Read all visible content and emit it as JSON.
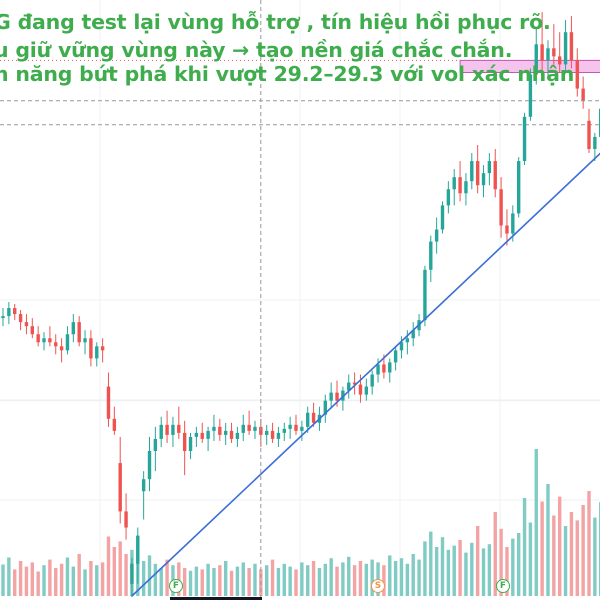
{
  "colors": {
    "up": "#26a69a",
    "down": "#ef5350",
    "volume_up": "#80cbc4",
    "volume_down": "#f3a3a3",
    "trendline": "#3b6fd6",
    "zone_fill": "#f4c4ec",
    "zone_border": "#c458b8",
    "annotation_text": "#3fad4d",
    "crosshair": "#9598a1",
    "grid": "#eef0f3",
    "badge": "#3fad4d",
    "badge_s": "#f0944b"
  },
  "annotations": [
    "G đang test lại vùng hỗ trợ , tín hiệu hồi phục rõ.",
    "u giữ vững vùng này → tạo nền giá chắc chắn.",
    "n năng bứt phá khi vượt 29.2–29.3 với vol xác nhận"
  ],
  "events": [
    {
      "letter": "F",
      "icon": "financials-event-icon"
    },
    {
      "letter": "S",
      "icon": "split-event-icon"
    },
    {
      "letter": "F",
      "icon": "financials-event-icon"
    }
  ],
  "chart_data": {
    "type": "candlestick",
    "price_axis": {
      "top": 29.52,
      "bottom": 26.54
    },
    "candles": [
      [
        27.94,
        27.99,
        27.9,
        27.95
      ],
      [
        27.95,
        28.02,
        27.91,
        27.99
      ],
      [
        27.99,
        28.01,
        27.93,
        27.96
      ],
      [
        27.96,
        27.98,
        27.88,
        27.92
      ],
      [
        27.92,
        27.96,
        27.86,
        27.9
      ],
      [
        27.9,
        27.94,
        27.84,
        27.86
      ],
      [
        27.86,
        27.9,
        27.8,
        27.82
      ],
      [
        27.82,
        27.87,
        27.78,
        27.84
      ],
      [
        27.84,
        27.9,
        27.8,
        27.82
      ],
      [
        27.82,
        27.86,
        27.76,
        27.8
      ],
      [
        27.8,
        27.84,
        27.72,
        27.78
      ],
      [
        27.78,
        27.9,
        27.76,
        27.86
      ],
      [
        27.86,
        27.96,
        27.82,
        27.92
      ],
      [
        27.92,
        27.95,
        27.8,
        27.82
      ],
      [
        27.82,
        27.88,
        27.76,
        27.84
      ],
      [
        27.84,
        27.88,
        27.7,
        27.74
      ],
      [
        27.74,
        27.82,
        27.7,
        27.8
      ],
      [
        27.8,
        27.84,
        27.72,
        27.78
      ],
      [
        27.6,
        27.67,
        27.4,
        27.44
      ],
      [
        27.44,
        27.5,
        27.36,
        27.38
      ],
      [
        27.22,
        27.35,
        26.92,
        26.98
      ],
      [
        26.98,
        27.07,
        26.84,
        26.9
      ],
      [
        26.62,
        26.75,
        26.56,
        26.72
      ],
      [
        26.72,
        26.9,
        26.62,
        26.86
      ],
      [
        27.08,
        27.18,
        26.94,
        27.14
      ],
      [
        27.14,
        27.35,
        27.08,
        27.28
      ],
      [
        27.28,
        27.4,
        27.18,
        27.34
      ],
      [
        27.34,
        27.45,
        27.3,
        27.41
      ],
      [
        27.41,
        27.48,
        27.32,
        27.36
      ],
      [
        27.36,
        27.45,
        27.3,
        27.41
      ],
      [
        27.41,
        27.5,
        27.34,
        27.37
      ],
      [
        27.37,
        27.43,
        27.16,
        27.28
      ],
      [
        27.28,
        27.37,
        27.24,
        27.35
      ],
      [
        27.35,
        27.4,
        27.3,
        27.37
      ],
      [
        27.37,
        27.42,
        27.32,
        27.34
      ],
      [
        27.34,
        27.4,
        27.28,
        27.38
      ],
      [
        27.38,
        27.46,
        27.33,
        27.4
      ],
      [
        27.4,
        27.44,
        27.33,
        27.36
      ],
      [
        27.36,
        27.42,
        27.31,
        27.38
      ],
      [
        27.38,
        27.42,
        27.32,
        27.34
      ],
      [
        27.34,
        27.4,
        27.3,
        27.37
      ],
      [
        27.37,
        27.46,
        27.33,
        27.41
      ],
      [
        27.41,
        27.48,
        27.36,
        27.38
      ],
      [
        27.38,
        27.43,
        27.34,
        27.4
      ],
      [
        27.4,
        27.44,
        27.3,
        27.36
      ],
      [
        27.36,
        27.41,
        27.31,
        27.38
      ],
      [
        27.38,
        27.42,
        27.32,
        27.34
      ],
      [
        27.34,
        27.4,
        27.3,
        27.37
      ],
      [
        27.37,
        27.42,
        27.33,
        27.39
      ],
      [
        27.39,
        27.45,
        27.34,
        27.41
      ],
      [
        27.41,
        27.46,
        27.36,
        27.38
      ],
      [
        27.38,
        27.43,
        27.33,
        27.4
      ],
      [
        27.4,
        27.5,
        27.37,
        27.47
      ],
      [
        27.47,
        27.52,
        27.4,
        27.42
      ],
      [
        27.42,
        27.5,
        27.38,
        27.46
      ],
      [
        27.46,
        27.56,
        27.42,
        27.53
      ],
      [
        27.53,
        27.62,
        27.49,
        27.57
      ],
      [
        27.57,
        27.63,
        27.5,
        27.53
      ],
      [
        27.53,
        27.6,
        27.48,
        27.58
      ],
      [
        27.58,
        27.66,
        27.54,
        27.62
      ],
      [
        27.62,
        27.67,
        27.56,
        27.61
      ],
      [
        27.61,
        27.66,
        27.52,
        27.56
      ],
      [
        27.56,
        27.64,
        27.53,
        27.6
      ],
      [
        27.6,
        27.68,
        27.56,
        27.66
      ],
      [
        27.66,
        27.74,
        27.62,
        27.71
      ],
      [
        27.71,
        27.76,
        27.64,
        27.67
      ],
      [
        27.67,
        27.74,
        27.62,
        27.72
      ],
      [
        27.72,
        27.8,
        27.68,
        27.78
      ],
      [
        27.78,
        27.85,
        27.74,
        27.82
      ],
      [
        27.82,
        27.88,
        27.76,
        27.84
      ],
      [
        27.84,
        27.92,
        27.8,
        27.88
      ],
      [
        27.88,
        27.96,
        27.85,
        27.93
      ],
      [
        27.93,
        28.2,
        27.9,
        28.18
      ],
      [
        28.18,
        28.35,
        28.12,
        28.32
      ],
      [
        28.32,
        28.44,
        28.26,
        28.38
      ],
      [
        28.38,
        28.52,
        28.36,
        28.5
      ],
      [
        28.5,
        28.62,
        28.46,
        28.58
      ],
      [
        28.58,
        28.68,
        28.5,
        28.64
      ],
      [
        28.64,
        28.72,
        28.52,
        28.56
      ],
      [
        28.56,
        28.66,
        28.5,
        28.62
      ],
      [
        28.62,
        28.76,
        28.58,
        28.72
      ],
      [
        28.72,
        28.8,
        28.56,
        28.6
      ],
      [
        28.6,
        28.7,
        28.54,
        28.66
      ],
      [
        28.66,
        28.76,
        28.6,
        28.72
      ],
      [
        28.72,
        28.78,
        28.54,
        28.58
      ],
      [
        28.58,
        28.64,
        28.34,
        28.4
      ],
      [
        28.4,
        28.48,
        28.3,
        28.36
      ],
      [
        28.36,
        28.5,
        28.32,
        28.46
      ],
      [
        28.46,
        28.74,
        28.44,
        28.72
      ],
      [
        28.72,
        28.96,
        28.7,
        28.94
      ],
      [
        28.94,
        29.18,
        28.92,
        29.15
      ],
      [
        29.15,
        29.38,
        29.1,
        29.3
      ],
      [
        29.3,
        29.46,
        29.16,
        29.22
      ],
      [
        29.22,
        29.32,
        29.14,
        29.28
      ],
      [
        29.28,
        29.4,
        29.2,
        29.24
      ],
      [
        29.24,
        29.36,
        29.16,
        29.2
      ],
      [
        29.2,
        29.42,
        29.16,
        29.36
      ],
      [
        29.36,
        29.44,
        29.18,
        29.22
      ],
      [
        29.22,
        29.28,
        29.04,
        29.08
      ],
      [
        29.08,
        29.14,
        28.98,
        29.02
      ],
      [
        28.92,
        28.98,
        28.76,
        28.78
      ],
      [
        28.78,
        28.86,
        28.72,
        28.84
      ],
      [
        28.84,
        29.0,
        28.82,
        28.98
      ]
    ],
    "volume": [
      0.45,
      0.55,
      0.38,
      0.5,
      0.42,
      0.48,
      0.35,
      0.44,
      0.52,
      0.4,
      0.46,
      0.55,
      0.42,
      0.6,
      0.38,
      0.5,
      0.44,
      0.48,
      0.85,
      0.7,
      0.78,
      0.6,
      0.66,
      0.72,
      0.5,
      0.58,
      0.46,
      0.4,
      0.52,
      0.44,
      0.48,
      0.4,
      0.36,
      0.42,
      0.38,
      0.46,
      0.4,
      0.44,
      0.5,
      0.36,
      0.42,
      0.48,
      0.4,
      0.46,
      0.38,
      0.44,
      0.52,
      0.4,
      0.46,
      0.42,
      0.38,
      0.48,
      0.44,
      0.5,
      0.4,
      0.46,
      0.54,
      0.42,
      0.48,
      0.56,
      0.44,
      0.5,
      0.46,
      0.52,
      0.48,
      0.44,
      0.58,
      0.5,
      0.54,
      0.46,
      0.6,
      0.52,
      0.78,
      0.92,
      0.7,
      0.84,
      0.66,
      0.72,
      0.8,
      0.62,
      0.76,
      1.0,
      0.68,
      0.74,
      1.2,
      0.96,
      0.7,
      0.82,
      0.9,
      1.4,
      1.05,
      2.1,
      1.35,
      1.6,
      1.15,
      1.42,
      1.0,
      1.2,
      1.08,
      1.3,
      1.5,
      1.12,
      1.34
    ],
    "support_trendline": {
      "from": {
        "index": 22,
        "price": 26.56
      },
      "to": {
        "index": 102,
        "price": 28.76
      }
    },
    "resistance_zone": {
      "from_index": 78,
      "top": 29.22,
      "bottom": 29.16
    },
    "reference_levels": [
      27.53,
      29.22,
      28.9
    ],
    "crosshair": {
      "index": 44,
      "price": 29.02
    }
  }
}
